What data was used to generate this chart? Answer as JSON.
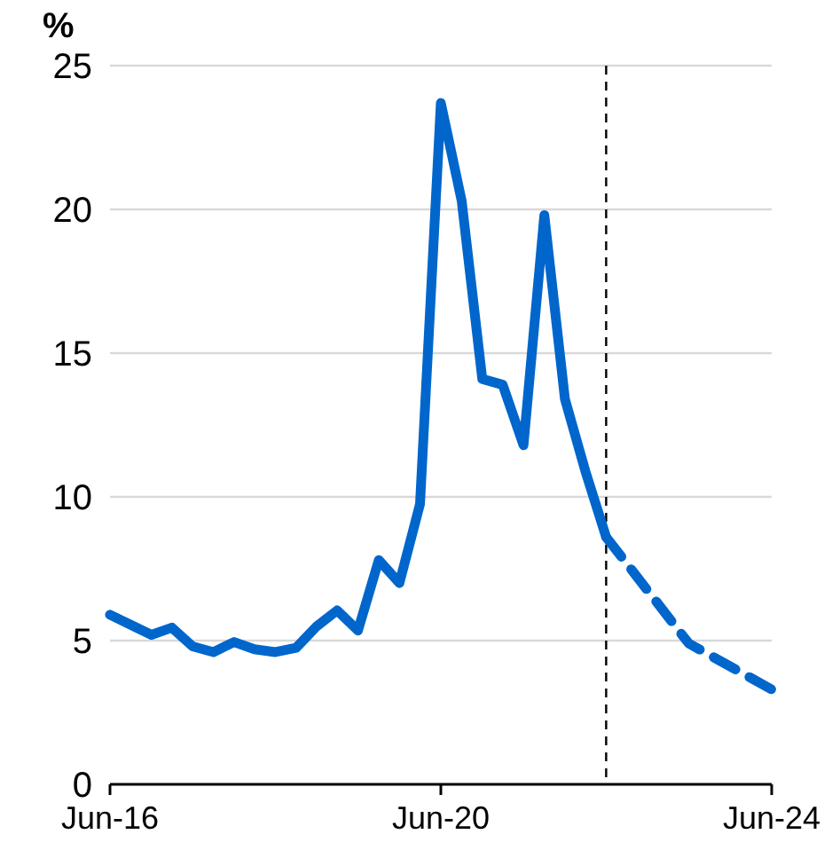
{
  "chart_data": {
    "type": "line",
    "ylabel": "%",
    "x": [
      "2016-06",
      "2016-09",
      "2016-12",
      "2017-03",
      "2017-06",
      "2017-09",
      "2017-12",
      "2018-03",
      "2018-06",
      "2018-09",
      "2018-12",
      "2019-03",
      "2019-06",
      "2019-09",
      "2019-12",
      "2020-03",
      "2020-06",
      "2020-09",
      "2020-12",
      "2021-03",
      "2021-06",
      "2021-09",
      "2021-12",
      "2022-03",
      "2022-06"
    ],
    "series": [
      {
        "color": "#0066cc",
        "line_style": "solid",
        "values": [
          5.9,
          5.55,
          5.2,
          5.45,
          4.8,
          4.6,
          4.95,
          4.7,
          4.6,
          4.75,
          5.5,
          6.05,
          5.35,
          7.8,
          7.0,
          9.75,
          23.7,
          20.3,
          14.1,
          13.9,
          11.8,
          19.8,
          13.4,
          10.9,
          8.6
        ]
      },
      {
        "color": "#0066cc",
        "line_style": "dashed",
        "x": [
          "2022-06",
          "2023-06",
          "2024-06"
        ],
        "values": [
          8.6,
          4.9,
          3.3
        ]
      }
    ],
    "xlim": [
      "2016-06",
      "2024-06"
    ],
    "xticks": [
      {
        "value": "2016-06",
        "label": "Jun-16"
      },
      {
        "value": "2020-06",
        "label": "Jun-20"
      },
      {
        "value": "2024-06",
        "label": "Jun-24"
      }
    ],
    "ylim": [
      0,
      25
    ],
    "yticks": [
      0,
      5,
      10,
      15,
      20,
      25
    ],
    "grid": "y",
    "marker": "none",
    "ref_lines": [
      {
        "axis": "x",
        "value": "2022-06",
        "color": "#000000",
        "line_style": "dashed"
      }
    ]
  }
}
